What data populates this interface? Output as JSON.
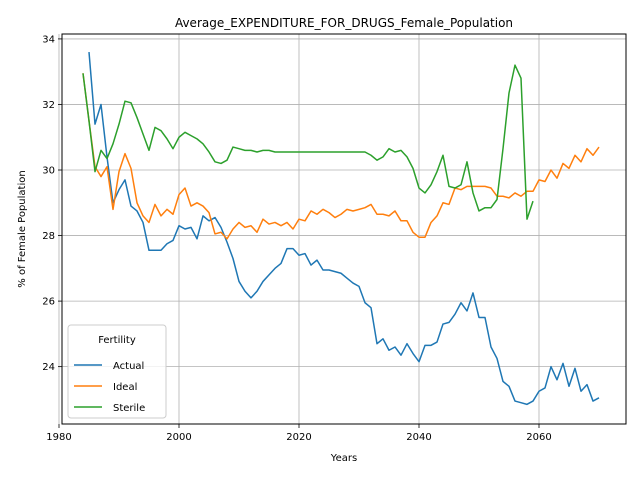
{
  "chart_data": {
    "type": "line",
    "title": "Average_EXPENDITURE_FOR_DRUGS_Female_Population",
    "xlabel": "Years",
    "ylabel": "% of Female Population",
    "xlim": [
      1980.5,
      2074.5
    ],
    "ylim": [
      22.25,
      34.15
    ],
    "xticks": [
      1980,
      2000,
      2020,
      2040,
      2060
    ],
    "yticks": [
      24,
      26,
      28,
      30,
      32,
      34
    ],
    "grid": true,
    "legend": {
      "title": "Fertility",
      "position": "lower-left"
    },
    "series": [
      {
        "name": "Actual",
        "color": "#1f77b4",
        "x": [
          1985,
          1986,
          1987,
          1988,
          1989,
          1990,
          1991,
          1992,
          1993,
          1994,
          1995,
          1996,
          1997,
          1998,
          1999,
          2000,
          2001,
          2002,
          2003,
          2004,
          2005,
          2006,
          2007,
          2008,
          2009,
          2010,
          2011,
          2012,
          2013,
          2014,
          2015,
          2016,
          2017,
          2018,
          2019,
          2020,
          2021,
          2022,
          2023,
          2024,
          2025,
          2026,
          2027,
          2028,
          2029,
          2030,
          2031,
          2032,
          2033,
          2034,
          2035,
          2036,
          2037,
          2038,
          2039,
          2040,
          2041,
          2042,
          2043,
          2044,
          2045,
          2046,
          2047,
          2048,
          2049,
          2050,
          2051,
          2052,
          2053,
          2054,
          2055,
          2056,
          2057,
          2058,
          2059,
          2060,
          2061,
          2062,
          2063,
          2064,
          2065,
          2066,
          2067,
          2068,
          2069,
          2070
        ],
        "values": [
          33.6,
          31.4,
          32.0,
          30.4,
          29.0,
          29.4,
          29.7,
          28.9,
          28.75,
          28.4,
          27.55,
          27.55,
          27.55,
          27.75,
          27.85,
          28.3,
          28.2,
          28.25,
          27.9,
          28.6,
          28.45,
          28.55,
          28.25,
          27.8,
          27.3,
          26.6,
          26.3,
          26.1,
          26.3,
          26.6,
          26.8,
          27.0,
          27.15,
          27.6,
          27.6,
          27.4,
          27.45,
          27.1,
          27.25,
          26.95,
          26.95,
          26.9,
          26.85,
          26.7,
          26.55,
          26.45,
          25.95,
          25.8,
          24.7,
          24.85,
          24.5,
          24.6,
          24.35,
          24.7,
          24.4,
          24.15,
          24.65,
          24.65,
          24.75,
          25.3,
          25.35,
          25.6,
          25.95,
          25.7,
          26.25,
          25.5,
          25.5,
          24.6,
          24.25,
          23.55,
          23.4,
          22.95,
          22.9,
          22.85,
          22.95,
          23.25,
          23.35,
          24.0,
          23.6,
          24.1,
          23.4,
          23.95,
          23.25,
          23.45,
          22.95,
          23.05
        ]
      },
      {
        "name": "Ideal",
        "color": "#ff7f0e",
        "x": [
          1984,
          1985,
          1986,
          1987,
          1988,
          1989,
          1990,
          1991,
          1992,
          1993,
          1994,
          1995,
          1996,
          1997,
          1998,
          1999,
          2000,
          2001,
          2002,
          2003,
          2004,
          2005,
          2006,
          2007,
          2008,
          2009,
          2010,
          2011,
          2012,
          2013,
          2014,
          2015,
          2016,
          2017,
          2018,
          2019,
          2020,
          2021,
          2022,
          2023,
          2024,
          2025,
          2026,
          2027,
          2028,
          2029,
          2030,
          2031,
          2032,
          2033,
          2034,
          2035,
          2036,
          2037,
          2038,
          2039,
          2040,
          2041,
          2042,
          2043,
          2044,
          2045,
          2046,
          2047,
          2048,
          2049,
          2050,
          2051,
          2052,
          2053,
          2054,
          2055,
          2056,
          2057,
          2058,
          2059,
          2060,
          2061,
          2062,
          2063,
          2064,
          2065,
          2066,
          2067,
          2068,
          2069,
          2070
        ],
        "values": [
          32.95,
          31.5,
          30.1,
          29.8,
          30.1,
          28.8,
          29.95,
          30.5,
          30.05,
          29.0,
          28.6,
          28.4,
          28.95,
          28.6,
          28.8,
          28.65,
          29.25,
          29.45,
          28.9,
          29.0,
          28.9,
          28.7,
          28.05,
          28.1,
          27.9,
          28.2,
          28.4,
          28.25,
          28.3,
          28.1,
          28.5,
          28.35,
          28.4,
          28.3,
          28.4,
          28.2,
          28.5,
          28.45,
          28.75,
          28.65,
          28.8,
          28.7,
          28.55,
          28.65,
          28.8,
          28.75,
          28.8,
          28.85,
          28.95,
          28.65,
          28.65,
          28.6,
          28.75,
          28.45,
          28.45,
          28.1,
          27.95,
          27.95,
          28.4,
          28.6,
          29.0,
          28.95,
          29.45,
          29.4,
          29.5,
          29.5,
          29.5,
          29.5,
          29.45,
          29.2,
          29.2,
          29.15,
          29.3,
          29.2,
          29.35,
          29.35,
          29.7,
          29.65,
          30.0,
          29.75,
          30.2,
          30.05,
          30.45,
          30.25,
          30.65,
          30.45,
          30.7
        ]
      },
      {
        "name": "Sterile",
        "color": "#2ca02c",
        "x": [
          1984,
          1985,
          1986,
          1987,
          1988,
          1989,
          1990,
          1991,
          1992,
          1993,
          1994,
          1995,
          1996,
          1997,
          1998,
          1999,
          2000,
          2001,
          2002,
          2003,
          2004,
          2005,
          2006,
          2007,
          2008,
          2009,
          2010,
          2011,
          2012,
          2013,
          2014,
          2015,
          2016,
          2017,
          2018,
          2019,
          2020,
          2021,
          2022,
          2023,
          2024,
          2025,
          2026,
          2027,
          2028,
          2029,
          2030,
          2031,
          2032,
          2033,
          2034,
          2035,
          2036,
          2037,
          2038,
          2039,
          2040,
          2041,
          2042,
          2043,
          2044,
          2045,
          2046,
          2047,
          2048,
          2049,
          2050,
          2051,
          2052,
          2053,
          2054,
          2055,
          2056,
          2057,
          2058,
          2059
        ],
        "values": [
          32.95,
          31.5,
          29.95,
          30.6,
          30.35,
          30.8,
          31.4,
          32.1,
          32.05,
          31.6,
          31.1,
          30.6,
          31.3,
          31.2,
          30.95,
          30.65,
          31.0,
          31.15,
          31.05,
          30.95,
          30.8,
          30.55,
          30.25,
          30.2,
          30.3,
          30.7,
          30.65,
          30.6,
          30.6,
          30.55,
          30.6,
          30.6,
          30.55,
          30.55,
          30.55,
          30.55,
          30.55,
          30.55,
          30.55,
          30.55,
          30.55,
          30.55,
          30.55,
          30.55,
          30.55,
          30.55,
          30.55,
          30.55,
          30.45,
          30.3,
          30.4,
          30.65,
          30.55,
          30.6,
          30.4,
          30.05,
          29.45,
          29.3,
          29.55,
          29.95,
          30.45,
          29.5,
          29.45,
          29.55,
          30.25,
          29.3,
          28.75,
          28.85,
          28.85,
          29.1,
          30.65,
          32.35,
          33.2,
          32.8,
          28.5,
          29.05
        ]
      }
    ]
  }
}
